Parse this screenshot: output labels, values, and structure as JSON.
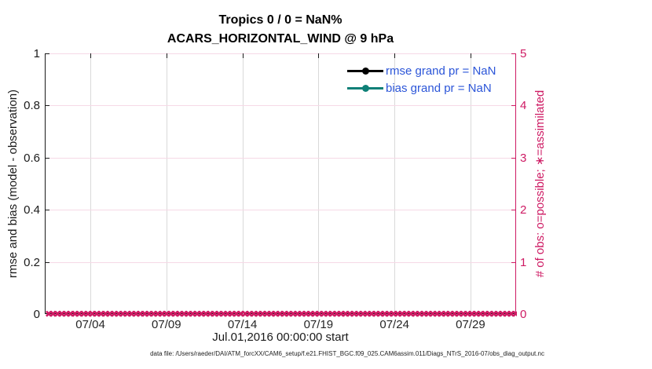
{
  "figure": {
    "title_line1": "Tropics 0 / 0 = NaN%",
    "title_line2": "ACARS_HORIZONTAL_WIND @ 9 hPa",
    "footer": "data file: /Users/raeder/DAI/ATM_forcXX/CAM6_setup/f.e21.FHIST_BGC.f09_025.CAM6assim.011/Diags_NTrS_2016-07/obs_diag_output.nc"
  },
  "legend": {
    "text_color": "#2b55d8",
    "items": [
      {
        "label": "rmse grand pr = NaN",
        "color": "#000000"
      },
      {
        "label": "bias grand pr = NaN",
        "color": "#0e8077"
      }
    ]
  },
  "axes": {
    "left": {
      "label": "rmse and bias (model - observation)",
      "ticks": [
        "0",
        "0.2",
        "0.4",
        "0.6",
        "0.8",
        "1"
      ],
      "color": "#1a1a1a"
    },
    "right": {
      "label": "# of obs: o=possible; ∗=assimilated",
      "ticks": [
        "0",
        "1",
        "2",
        "3",
        "4",
        "5"
      ],
      "color": "#ce1a63"
    },
    "x": {
      "label": "Jul.01,2016 00:00:00 start",
      "ticks": [
        {
          "label": "07/04",
          "day": 3
        },
        {
          "label": "07/09",
          "day": 8
        },
        {
          "label": "07/14",
          "day": 13
        },
        {
          "label": "07/19",
          "day": 18
        },
        {
          "label": "07/24",
          "day": 23
        },
        {
          "label": "07/29",
          "day": 28
        }
      ],
      "span_days": 31
    }
  },
  "zero_band": {
    "glyph": "✖",
    "count": 115
  },
  "chart_data": {
    "type": "line",
    "title": "Tropics 0 / 0 = NaN% | ACARS_HORIZONTAL_WIND @ 9 hPa",
    "xlabel": "Jul.01,2016 00:00:00 start",
    "ylabel_left": "rmse and bias (model - observation)",
    "ylabel_right": "# of obs: o=possible; ∗=assimilated",
    "x_range": [
      "2016-07-01",
      "2016-08-01"
    ],
    "x_tick_labels": [
      "07/04",
      "07/09",
      "07/14",
      "07/19",
      "07/24",
      "07/29"
    ],
    "ylim_left": [
      0,
      1
    ],
    "yticks_left": [
      0,
      0.2,
      0.4,
      0.6,
      0.8,
      1
    ],
    "ylim_right": [
      0,
      5
    ],
    "yticks_right": [
      0,
      1,
      2,
      3,
      4,
      5
    ],
    "grid": true,
    "series": [
      {
        "name": "rmse grand pr",
        "color": "#000000",
        "values": "NaN — no curve plotted"
      },
      {
        "name": "bias grand pr",
        "color": "#0e8077",
        "values": "NaN — no curve plotted"
      },
      {
        "name": "assimilated obs count",
        "color": "#ce1a63",
        "marker": "asterisk",
        "values": "0 at every time bin from 07/01 through 08/01 (dense pink marker row along y=0, right axis)"
      }
    ]
  }
}
